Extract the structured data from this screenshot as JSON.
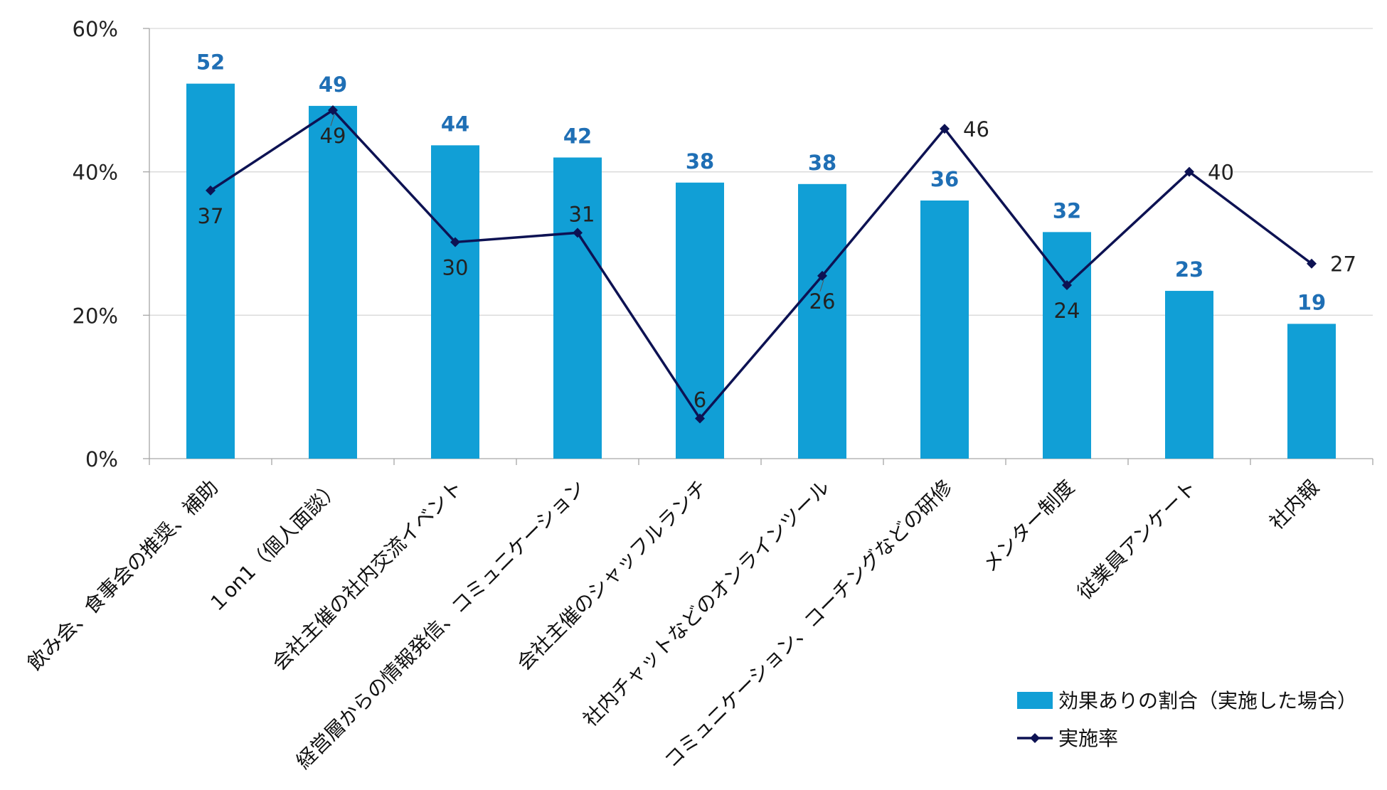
{
  "chart_data": {
    "type": "bar",
    "title": "",
    "xlabel": "",
    "ylabel": "",
    "ylim": [
      0,
      60
    ],
    "yticks": [
      0,
      20,
      40,
      60
    ],
    "ytick_labels": [
      "0%",
      "20%",
      "40%",
      "60%"
    ],
    "grid": true,
    "legend_position": "bottom-right",
    "categories": [
      "飲み会、食事会の推奨、補助",
      "１on1（個人面談）",
      "会社主催の社内交流イベント",
      "経営層からの情報発信、コミュニケーション",
      "会社主催のシャッフルランチ",
      "社内チャットなどのオンラインツール",
      "コミュニケーション、コーチングなどの研修",
      "メンター制度",
      "従業員アンケート",
      "社内報"
    ],
    "series": [
      {
        "name": "効果ありの割合（実施した場合）",
        "type": "bar",
        "color": "#119fd6",
        "label_color": "#1f6fb5",
        "values": [
          52,
          49,
          44,
          42,
          38,
          38,
          36,
          32,
          23,
          19
        ],
        "exact_values": [
          52.3,
          49.2,
          43.7,
          42.0,
          38.5,
          38.3,
          36.0,
          31.6,
          23.4,
          18.8
        ],
        "labels": [
          "52",
          "49",
          "44",
          "42",
          "38",
          "38",
          "36",
          "32",
          "23",
          "19"
        ]
      },
      {
        "name": "実施率",
        "type": "line",
        "color": "#0d1253",
        "label_color": "#222222",
        "values": [
          37,
          49,
          30,
          31,
          6,
          26,
          46,
          24,
          40,
          27
        ],
        "exact_values": [
          37.4,
          48.6,
          30.2,
          31.5,
          5.6,
          25.5,
          46.0,
          24.2,
          40.0,
          27.2
        ],
        "labels": [
          "37",
          "49",
          "30",
          "31",
          "6",
          "26",
          "46",
          "24",
          "40",
          "27"
        ]
      }
    ]
  }
}
